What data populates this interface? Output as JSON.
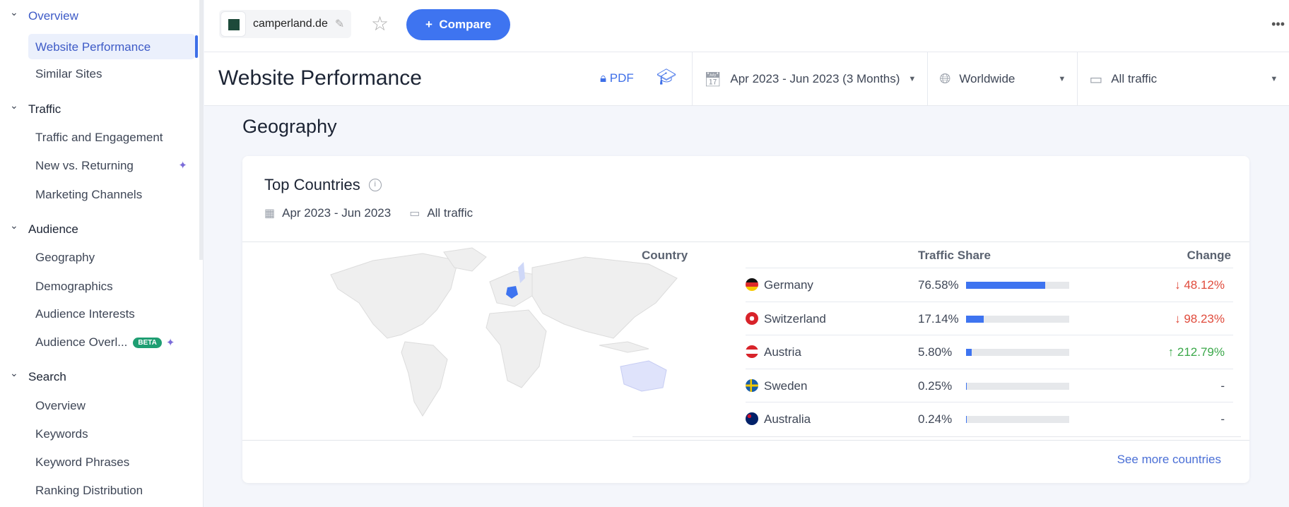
{
  "sidebar": {
    "sections": [
      {
        "label": "Overview",
        "items": [
          "Website Performance",
          "Similar Sites"
        ]
      },
      {
        "label": "Traffic",
        "items": [
          "Traffic and Engagement",
          "New vs. Returning",
          "Marketing Channels"
        ]
      },
      {
        "label": "Audience",
        "items": [
          "Geography",
          "Demographics",
          "Audience Interests",
          "Audience Overl..."
        ]
      },
      {
        "label": "Search",
        "items": [
          "Overview",
          "Keywords",
          "Keyword Phrases",
          "Ranking Distribution"
        ]
      }
    ],
    "active_item": "Website Performance",
    "beta_badge": "BETA"
  },
  "topbar": {
    "site": "camperland.de",
    "compare_label": "Compare",
    "compare_icon": "+"
  },
  "header": {
    "title": "Website Performance",
    "pdf_label": "PDF",
    "date_range": "Apr 2023 - Jun 2023 (3 Months)",
    "region": "Worldwide",
    "traffic": "All traffic"
  },
  "section_title": "Geography",
  "card": {
    "title": "Top Countries",
    "date": "Apr 2023 - Jun 2023",
    "traffic": "All traffic",
    "columns": [
      "Country",
      "Traffic Share",
      "Change"
    ],
    "rows": [
      {
        "country": "Germany",
        "share": "76.58%",
        "share_value": 76.58,
        "change": "48.12%",
        "direction": "down"
      },
      {
        "country": "Switzerland",
        "share": "17.14%",
        "share_value": 17.14,
        "change": "98.23%",
        "direction": "down"
      },
      {
        "country": "Austria",
        "share": "5.80%",
        "share_value": 5.8,
        "change": "212.79%",
        "direction": "up"
      },
      {
        "country": "Sweden",
        "share": "0.25%",
        "share_value": 0.25,
        "change": "-",
        "direction": "none"
      },
      {
        "country": "Australia",
        "share": "0.24%",
        "share_value": 0.24,
        "change": "-",
        "direction": "none"
      }
    ],
    "see_more": "See more countries"
  },
  "colors": {
    "accent": "#3e74f0",
    "down": "#e04b3c",
    "up": "#3ba84a",
    "beta": "#1e9e72"
  }
}
